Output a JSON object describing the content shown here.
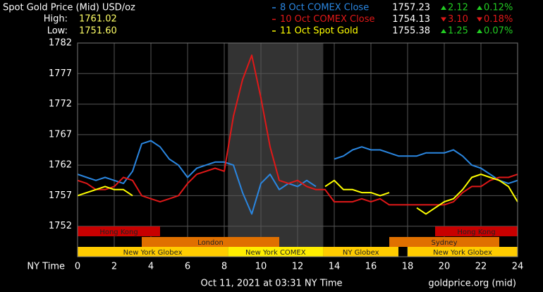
{
  "chart_data": {
    "type": "line",
    "title": "Spot Gold Price (Mid) USD/oz",
    "high_label": "High:",
    "high": "1761.02",
    "low_label": "Low:",
    "low": "1751.60",
    "x_label": "NY Time",
    "footer": "Oct 11, 2021 at 03:31 NY Time",
    "source": "goldprice.org (mid)",
    "xlim": [
      0,
      24
    ],
    "xticks": [
      0,
      2,
      4,
      6,
      8,
      10,
      12,
      14,
      16,
      18,
      20,
      22,
      24
    ],
    "ylim": [
      1747,
      1782
    ],
    "yticks": [
      1752,
      1757,
      1762,
      1767,
      1772,
      1777,
      1782
    ],
    "grid": true,
    "x": [
      0,
      0.5,
      1,
      1.5,
      2,
      2.5,
      3,
      3.5,
      4,
      4.5,
      5,
      5.5,
      6,
      6.5,
      7,
      7.5,
      8,
      8.5,
      9,
      9.5,
      10,
      10.5,
      11,
      11.5,
      12,
      12.5,
      13,
      13.5,
      14,
      14.5,
      15,
      15.5,
      16,
      16.5,
      17,
      17.5,
      18,
      18.5,
      19,
      19.5,
      20,
      20.5,
      21,
      21.5,
      22,
      22.5,
      23,
      23.5,
      24
    ],
    "series": [
      {
        "name": "8 Oct COMEX Close",
        "color": "#2a86e0",
        "close": "1757.23",
        "change": "2.12",
        "pct": "0.12%",
        "direction": "up",
        "values": [
          1760.5,
          1760,
          1759.5,
          1760,
          1759.5,
          1759,
          1761,
          1765.5,
          1766,
          1765,
          1763,
          1762,
          1760,
          1761.5,
          1762,
          1762.5,
          1762.5,
          1762,
          1757.5,
          1754,
          1759,
          1760.5,
          1758,
          1759,
          1758.5,
          1759.5,
          1758.5,
          null,
          1763,
          1763.5,
          1764.5,
          1765,
          1764.5,
          1764.5,
          1764,
          1763.5,
          1763.5,
          1763.5,
          1764,
          1764,
          1764,
          1764.5,
          1763.5,
          1762,
          1761.5,
          1760.5,
          1759.5,
          1759,
          1759.5
        ]
      },
      {
        "name": "10 Oct COMEX Close",
        "color": "#e01818",
        "close": "1754.13",
        "change": "3.10",
        "pct": "0.18%",
        "direction": "down",
        "values": [
          1759.5,
          1759,
          1758,
          1758,
          1758.5,
          1760,
          1759.5,
          1757,
          1756.5,
          1756,
          1756.5,
          1757,
          1759,
          1760.5,
          1761,
          1761.5,
          1761,
          1770,
          1776,
          1780,
          1773,
          1765,
          1759.5,
          1759,
          1759.5,
          1758.5,
          1758,
          1758,
          1756,
          1756,
          1756,
          1756.5,
          1756,
          1756.5,
          1755.5,
          1755.5,
          1755.5,
          1755.5,
          1755.5,
          1755.5,
          1755.5,
          1756,
          1757.5,
          1758.5,
          1758.5,
          1759.5,
          1760,
          1760,
          1760.5
        ]
      },
      {
        "name": "11 Oct Spot Gold",
        "color": "#ffff00",
        "close": "1755.38",
        "change": "1.25",
        "pct": "0.07%",
        "direction": "up",
        "values": [
          1757,
          1757.5,
          1758,
          1758.5,
          1758,
          1758,
          1757,
          null,
          null,
          null,
          null,
          null,
          null,
          null,
          null,
          null,
          null,
          null,
          null,
          null,
          null,
          null,
          null,
          null,
          null,
          null,
          null,
          1758.5,
          1759.5,
          1758,
          1758,
          1757.5,
          1757.5,
          1757,
          1757.5,
          null,
          null,
          1755,
          1754,
          1755,
          1756,
          1756.5,
          1758,
          1760,
          1760.5,
          1760,
          1759.5,
          1758.5,
          1756
        ]
      }
    ],
    "session_rows": [
      [
        {
          "name": "Hong Kong",
          "start": 0,
          "end": 4.5,
          "color": "#c80000"
        },
        {
          "name": "Hong Kong",
          "start": 19.5,
          "end": 24,
          "color": "#c80000"
        }
      ],
      [
        {
          "name": "London",
          "start": 3.5,
          "end": 11,
          "color": "#e07000"
        },
        {
          "name": "Sydney",
          "start": 17,
          "end": 23,
          "color": "#e07000"
        }
      ],
      [
        {
          "name": "New York Globex",
          "start": 0,
          "end": 8.2,
          "color": "#ffcc00"
        },
        {
          "name": "New York COMEX",
          "start": 8.2,
          "end": 13.4,
          "color": "#ffee00",
          "highlight": true
        },
        {
          "name": "NY Globex",
          "start": 13.4,
          "end": 17.5,
          "color": "#ffcc00"
        },
        {
          "name": "New York Globex",
          "start": 18,
          "end": 24,
          "color": "#ffcc00"
        }
      ]
    ]
  }
}
